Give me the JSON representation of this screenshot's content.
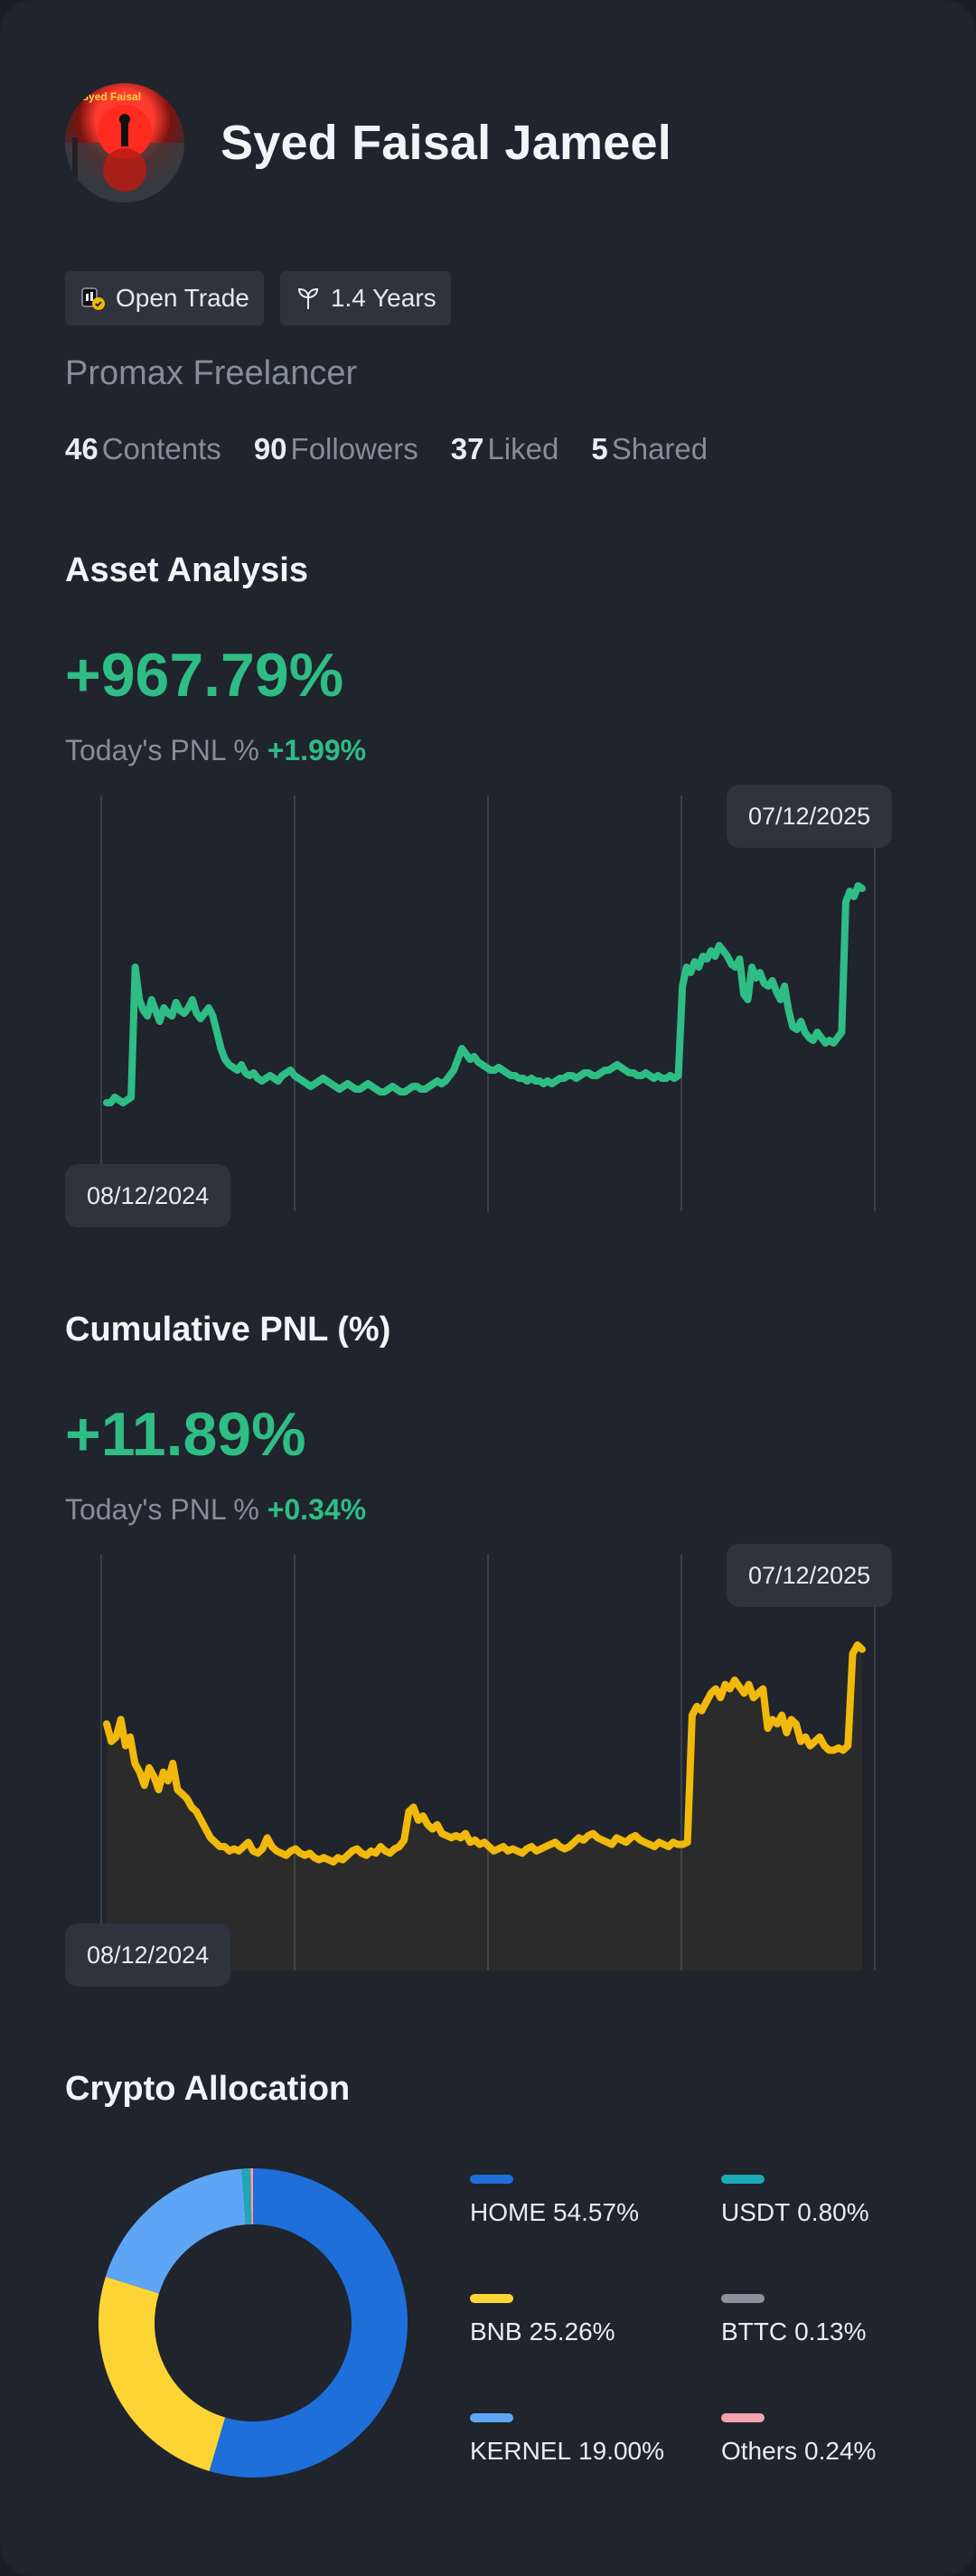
{
  "profile": {
    "name": "Syed Faisal Jameel",
    "avatar_caption": "Syed Faisal",
    "badges": [
      {
        "label": "Open Trade",
        "icon": "verified-trader-icon"
      },
      {
        "label": "1.4 Years",
        "icon": "sprout-icon"
      }
    ],
    "tagline": "Promax Freelancer",
    "stats": [
      {
        "value": "46",
        "label": "Contents"
      },
      {
        "value": "90",
        "label": "Followers"
      },
      {
        "value": "37",
        "label": "Liked"
      },
      {
        "value": "5",
        "label": "Shared"
      }
    ]
  },
  "asset_analysis": {
    "title": "Asset Analysis",
    "value": "+967.79%",
    "today_label": "Today's PNL %",
    "today_value": "+1.99%",
    "start_date": "08/12/2024",
    "end_date": "07/12/2025"
  },
  "cumulative_pnl": {
    "title": "Cumulative PNL (%)",
    "value": "+11.89%",
    "today_label": "Today's PNL %",
    "today_value": "+0.34%",
    "start_date": "08/12/2024",
    "end_date": "07/12/2025"
  },
  "allocation": {
    "title": "Crypto Allocation",
    "items": [
      {
        "name": "HOME",
        "pct": "54.57%",
        "value": 54.57,
        "color": "#1e6fd9"
      },
      {
        "name": "USDT",
        "pct": "0.80%",
        "value": 0.8,
        "color": "#1ba9b5"
      },
      {
        "name": "BNB",
        "pct": "25.26%",
        "value": 25.26,
        "color": "#fcd535"
      },
      {
        "name": "BTTC",
        "pct": "0.13%",
        "value": 0.13,
        "color": "#8a929e"
      },
      {
        "name": "KERNEL",
        "pct": "19.00%",
        "value": 19.0,
        "color": "#5ea6f5"
      },
      {
        "name": "Others",
        "pct": "0.24%",
        "value": 0.24,
        "color": "#f5a3ae"
      }
    ]
  },
  "chart_data": [
    {
      "type": "line",
      "color": "#2ebd85",
      "x_range": [
        "08/12/2024",
        "07/12/2025"
      ],
      "values": [
        12,
        12,
        14,
        13,
        12,
        13,
        14,
        62,
        50,
        46,
        44,
        50,
        46,
        42,
        47,
        45,
        44,
        49,
        46,
        45,
        47,
        50,
        45,
        43,
        45,
        47,
        44,
        38,
        32,
        28,
        26,
        25,
        24,
        26,
        23,
        22,
        23,
        21,
        20,
        21,
        22,
        21,
        20,
        22,
        23,
        24,
        22,
        21,
        20,
        19,
        18,
        19,
        20,
        21,
        20,
        19,
        18,
        17,
        18,
        19,
        18,
        17,
        17,
        18,
        19,
        18,
        17,
        16,
        16,
        17,
        18,
        17,
        16,
        16,
        17,
        18,
        18,
        17,
        17,
        18,
        19,
        20,
        19,
        20,
        22,
        24,
        28,
        32,
        30,
        28,
        29,
        27,
        26,
        25,
        24,
        24,
        25,
        24,
        23,
        22,
        22,
        21,
        21,
        20,
        21,
        20,
        20,
        19,
        20,
        19,
        20,
        21,
        21,
        22,
        22,
        21,
        22,
        23,
        23,
        22,
        22,
        23,
        24,
        24,
        25,
        26,
        25,
        24,
        23,
        23,
        22,
        22,
        23,
        22,
        21,
        22,
        21,
        21,
        22,
        21,
        22,
        55,
        62,
        60,
        64,
        62,
        66,
        65,
        68,
        66,
        70,
        68,
        66,
        63,
        62,
        65,
        52,
        50,
        62,
        58,
        60,
        56,
        55,
        57,
        53,
        50,
        55,
        46,
        40,
        39,
        42,
        38,
        36,
        35,
        38,
        36,
        34,
        35,
        34,
        36,
        38,
        86,
        90,
        88,
        92,
        91
      ]
    },
    {
      "type": "line",
      "color": "#f0b90b",
      "x_range": [
        "08/12/2024",
        "07/12/2025"
      ],
      "values": [
        78,
        70,
        72,
        80,
        68,
        72,
        60,
        56,
        50,
        58,
        54,
        48,
        56,
        52,
        60,
        48,
        46,
        44,
        40,
        38,
        34,
        30,
        26,
        24,
        22,
        22,
        20,
        21,
        20,
        22,
        24,
        20,
        19,
        21,
        26,
        22,
        20,
        19,
        18,
        20,
        21,
        19,
        18,
        19,
        17,
        16,
        17,
        16,
        15,
        17,
        16,
        18,
        20,
        21,
        19,
        18,
        20,
        19,
        22,
        20,
        19,
        21,
        22,
        25,
        38,
        40,
        34,
        36,
        32,
        30,
        32,
        28,
        27,
        26,
        27,
        26,
        28,
        24,
        25,
        23,
        24,
        22,
        20,
        21,
        22,
        20,
        21,
        20,
        19,
        21,
        22,
        20,
        21,
        22,
        23,
        24,
        22,
        21,
        22,
        24,
        26,
        25,
        27,
        28,
        26,
        25,
        24,
        23,
        26,
        25,
        24,
        26,
        27,
        25,
        24,
        23,
        22,
        24,
        23,
        22,
        24,
        23,
        23,
        24,
        82,
        86,
        84,
        88,
        92,
        94,
        90,
        96,
        94,
        98,
        95,
        92,
        96,
        90,
        92,
        94,
        76,
        80,
        78,
        82,
        74,
        80,
        78,
        70,
        72,
        68,
        70,
        72,
        68,
        66,
        66,
        67,
        66,
        68,
        110,
        114,
        112
      ]
    }
  ]
}
